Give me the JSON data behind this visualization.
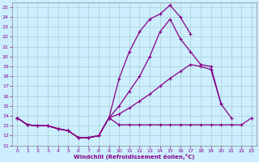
{
  "xlabel": "Windchill (Refroidissement éolien,°C)",
  "bg_color": "#cceeff",
  "grid_color": "#aacccc",
  "line_color": "#880088",
  "xlim": [
    -0.5,
    23.5
  ],
  "ylim": [
    11,
    25.5
  ],
  "xticks": [
    0,
    1,
    2,
    3,
    4,
    5,
    6,
    7,
    8,
    9,
    10,
    11,
    12,
    13,
    14,
    15,
    16,
    17,
    18,
    19,
    20,
    21,
    22,
    23
  ],
  "yticks": [
    11,
    12,
    13,
    14,
    15,
    16,
    17,
    18,
    19,
    20,
    21,
    22,
    23,
    24,
    25
  ],
  "lines": [
    {
      "x": [
        0,
        1,
        2,
        3,
        4,
        5,
        6,
        7,
        8,
        9,
        10,
        11,
        12,
        13,
        14,
        15,
        16,
        17,
        18,
        19,
        20,
        21,
        22,
        23
      ],
      "y": [
        13.8,
        13.1,
        13.0,
        13.0,
        12.7,
        12.5,
        11.8,
        11.8,
        12.0,
        13.8,
        13.1,
        13.1,
        13.1,
        13.1,
        13.1,
        13.1,
        13.1,
        13.1,
        13.1,
        13.1,
        13.1,
        13.1,
        13.1,
        13.8
      ]
    },
    {
      "x": [
        0,
        1,
        2,
        3,
        4,
        5,
        6,
        7,
        8,
        9,
        10,
        11,
        12,
        13,
        14,
        15,
        16,
        17,
        18,
        19,
        20,
        21
      ],
      "y": [
        13.8,
        13.1,
        13.0,
        13.0,
        12.7,
        12.5,
        11.8,
        11.8,
        12.0,
        13.8,
        14.2,
        14.8,
        15.5,
        16.2,
        17.0,
        17.8,
        18.5,
        19.2,
        19.0,
        18.7,
        15.2,
        13.8
      ]
    },
    {
      "x": [
        0,
        1,
        2,
        3,
        4,
        5,
        6,
        7,
        8,
        9,
        10,
        11,
        12,
        13,
        14,
        15,
        16,
        17,
        18,
        19,
        20,
        21,
        22,
        23
      ],
      "y": [
        13.8,
        13.1,
        13.0,
        13.0,
        12.7,
        12.5,
        11.8,
        11.8,
        12.0,
        13.8,
        15.0,
        16.5,
        18.0,
        20.0,
        22.5,
        23.8,
        21.8,
        20.5,
        19.2,
        19.0,
        15.2,
        null,
        null,
        null
      ]
    },
    {
      "x": [
        0,
        1,
        2,
        3,
        4,
        5,
        6,
        7,
        8,
        9,
        10,
        11,
        12,
        13,
        14,
        15,
        16,
        17
      ],
      "y": [
        13.8,
        13.1,
        13.0,
        13.0,
        12.7,
        12.5,
        11.8,
        11.8,
        12.0,
        13.8,
        17.8,
        20.5,
        22.5,
        23.8,
        24.3,
        25.2,
        24.0,
        22.3
      ]
    }
  ]
}
